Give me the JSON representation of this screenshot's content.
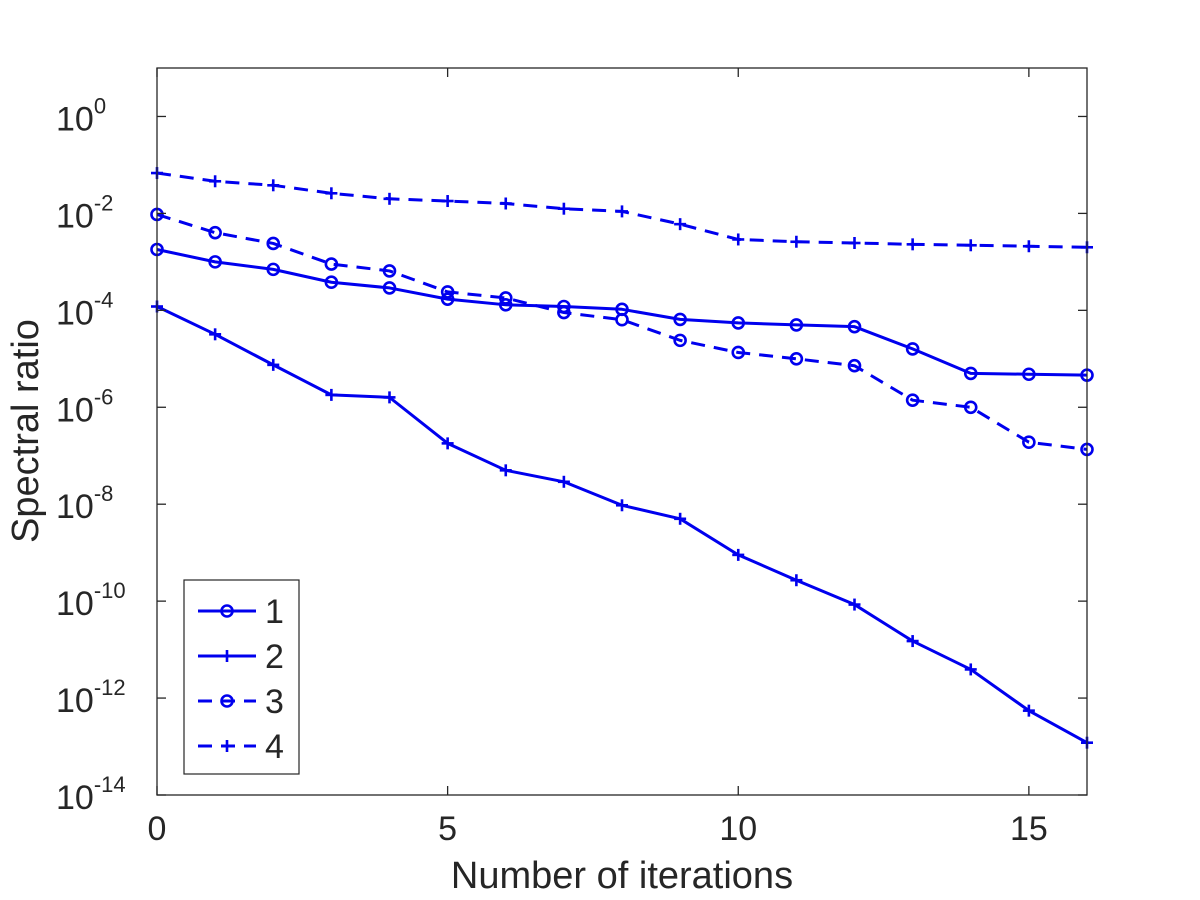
{
  "chart_data": {
    "type": "line",
    "title": "",
    "xlabel": "Number of iterations",
    "ylabel": "Spectral ratio",
    "yscale": "log",
    "xlim": [
      0,
      16
    ],
    "ylim": [
      1e-14,
      10
    ],
    "xticks": [
      0,
      5,
      10,
      15
    ],
    "xtick_labels": [
      "0",
      "5",
      "10",
      "15"
    ],
    "yticks": [
      {
        "base": "10",
        "exp": "-14",
        "value": 1e-14
      },
      {
        "base": "10",
        "exp": "-12",
        "value": 1e-12
      },
      {
        "base": "10",
        "exp": "-10",
        "value": 1e-10
      },
      {
        "base": "10",
        "exp": "-8",
        "value": 1e-08
      },
      {
        "base": "10",
        "exp": "-6",
        "value": 1e-06
      },
      {
        "base": "10",
        "exp": "-4",
        "value": 0.0001
      },
      {
        "base": "10",
        "exp": "-2",
        "value": 0.01
      },
      {
        "base": "10",
        "exp": "0",
        "value": 1
      }
    ],
    "x": [
      0,
      1,
      2,
      3,
      4,
      5,
      6,
      7,
      8,
      9,
      10,
      11,
      12,
      13,
      14,
      15,
      16
    ],
    "series": [
      {
        "name": "1",
        "linestyle": "solid",
        "marker": "circle",
        "color": "#0000ee",
        "values": [
          0.0018,
          0.001,
          0.0007,
          0.00038,
          0.00029,
          0.00017,
          0.00013,
          0.00012,
          0.000105,
          6.5e-05,
          5.5e-05,
          5e-05,
          4.6e-05,
          1.6e-05,
          5e-06,
          4.8e-06,
          4.6e-06
        ]
      },
      {
        "name": "2",
        "linestyle": "solid",
        "marker": "plus",
        "color": "#0000ee",
        "values": [
          0.00012,
          3.2e-05,
          7.5e-06,
          1.8e-06,
          1.6e-06,
          1.8e-07,
          5e-08,
          2.9e-08,
          9.5e-09,
          5e-09,
          9e-10,
          2.7e-10,
          8.5e-11,
          1.5e-11,
          3.9e-12,
          5.5e-13,
          1.2e-13
        ]
      },
      {
        "name": "3",
        "linestyle": "dashed",
        "marker": "circle",
        "color": "#0000ee",
        "values": [
          0.0095,
          0.004,
          0.0024,
          0.0009,
          0.00065,
          0.00024,
          0.00018,
          9e-05,
          6.4e-05,
          2.4e-05,
          1.35e-05,
          1e-05,
          7.2e-06,
          1.4e-06,
          1e-06,
          1.9e-07,
          1.35e-07
        ]
      },
      {
        "name": "4",
        "linestyle": "dashed",
        "marker": "plus",
        "color": "#0000ee",
        "values": [
          0.068,
          0.046,
          0.038,
          0.026,
          0.02,
          0.018,
          0.016,
          0.0125,
          0.011,
          0.006,
          0.0029,
          0.0026,
          0.00245,
          0.0023,
          0.0022,
          0.0021,
          0.002
        ]
      }
    ],
    "legend": {
      "placement": "bottom-left",
      "entries": [
        "1",
        "2",
        "3",
        "4"
      ]
    },
    "grid": false
  }
}
